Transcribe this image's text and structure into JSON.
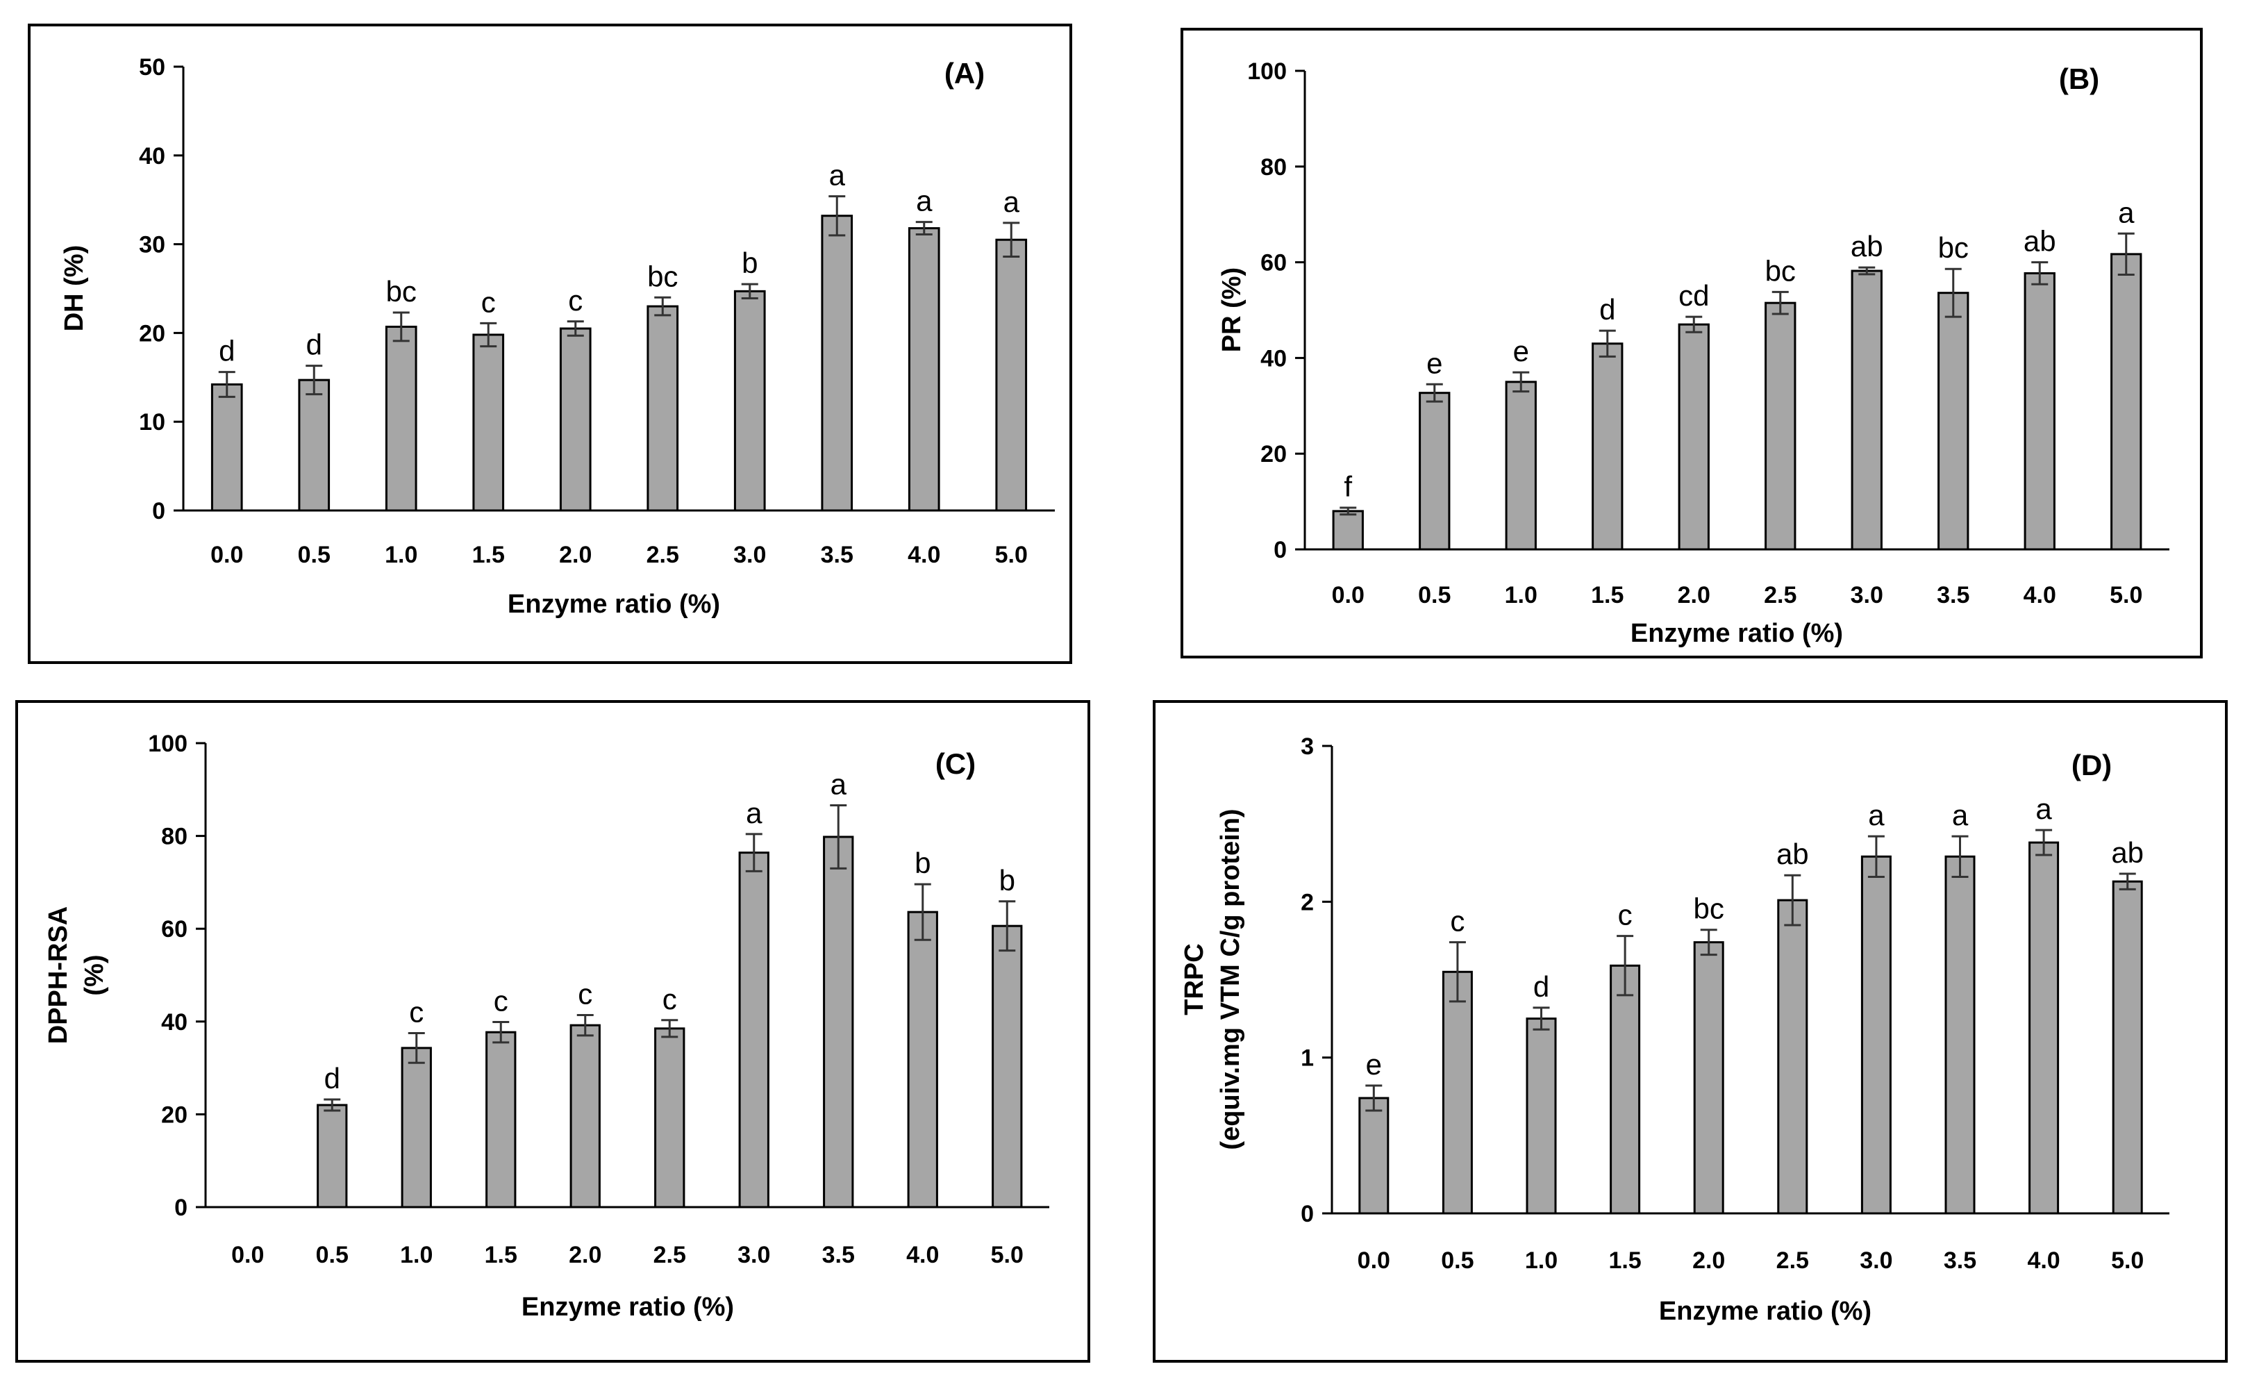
{
  "chart_data": [
    {
      "type": "bar",
      "panel": "(A)",
      "categories": [
        "0.0",
        "0.5",
        "1.0",
        "1.5",
        "2.0",
        "2.5",
        "3.0",
        "3.5",
        "4.0",
        "5.0"
      ],
      "values": [
        14.2,
        14.7,
        20.7,
        19.8,
        20.5,
        23.0,
        24.7,
        33.2,
        31.8,
        30.5
      ],
      "errors": [
        1.4,
        1.6,
        1.6,
        1.3,
        0.8,
        1.0,
        0.8,
        2.2,
        0.7,
        1.9
      ],
      "letters": [
        "d",
        "d",
        "bc",
        "c",
        "c",
        "bc",
        "b",
        "a",
        "a",
        "a"
      ],
      "ylabel": "DH (%)",
      "xlabel": "Enzyme ratio (%)",
      "ylim": [
        0,
        50
      ],
      "yticks": [
        "0",
        "10",
        "20",
        "30",
        "40",
        "50"
      ],
      "grid": false,
      "bar_color": "#a6a6a6"
    },
    {
      "type": "bar",
      "panel": "(B)",
      "categories": [
        "0.0",
        "0.5",
        "1.0",
        "1.5",
        "2.0",
        "2.5",
        "3.0",
        "3.5",
        "4.0",
        "5.0"
      ],
      "values": [
        8.0,
        32.7,
        35.0,
        43.0,
        47.0,
        51.5,
        58.2,
        53.6,
        57.7,
        61.7
      ],
      "errors": [
        0.7,
        1.8,
        2.0,
        2.7,
        1.6,
        2.3,
        0.7,
        5.0,
        2.3,
        4.3
      ],
      "letters": [
        "f",
        "e",
        "e",
        "d",
        "cd",
        "bc",
        "ab",
        "bc",
        "ab",
        "a"
      ],
      "ylabel": "PR (%)",
      "xlabel": "Enzyme ratio (%)",
      "ylim": [
        0,
        100
      ],
      "yticks": [
        "0",
        "20",
        "40",
        "60",
        "80",
        "100"
      ],
      "grid": false,
      "bar_color": "#a6a6a6"
    },
    {
      "type": "bar",
      "panel": "(C)",
      "categories": [
        "0.0",
        "0.5",
        "1.0",
        "1.5",
        "2.0",
        "2.5",
        "3.0",
        "3.5",
        "4.0",
        "5.0"
      ],
      "values": [
        0,
        22.0,
        34.3,
        37.7,
        39.2,
        38.5,
        76.4,
        79.8,
        63.6,
        60.6
      ],
      "errors": [
        0,
        1.2,
        3.2,
        2.2,
        2.2,
        1.8,
        4.0,
        6.8,
        6.0,
        5.3
      ],
      "letters": [
        "",
        "d",
        "c",
        "c",
        "c",
        "c",
        "a",
        "a",
        "b",
        "b"
      ],
      "ylabel": "DPPH-RSA",
      "ylabel2": "(%)",
      "xlabel": "Enzyme ratio (%)",
      "ylim": [
        0,
        100
      ],
      "yticks": [
        "0",
        "20",
        "40",
        "60",
        "80",
        "100"
      ],
      "grid": false,
      "bar_color": "#a6a6a6"
    },
    {
      "type": "bar",
      "panel": "(D)",
      "categories": [
        "0.0",
        "0.5",
        "1.0",
        "1.5",
        "2.0",
        "2.5",
        "3.0",
        "3.5",
        "4.0",
        "5.0"
      ],
      "values": [
        0.74,
        1.55,
        1.25,
        1.59,
        1.74,
        2.01,
        2.29,
        2.29,
        2.38,
        2.13
      ],
      "errors": [
        0.08,
        0.19,
        0.07,
        0.19,
        0.08,
        0.16,
        0.13,
        0.13,
        0.08,
        0.05
      ],
      "letters": [
        "e",
        "c",
        "d",
        "c",
        "bc",
        "ab",
        "a",
        "a",
        "a",
        "ab"
      ],
      "ylabel": "TRPC",
      "ylabel2": "(equiv.mg VTM C/g protein)",
      "xlabel": "Enzyme ratio (%)",
      "ylim": [
        0,
        3
      ],
      "yticks": [
        "0",
        "1",
        "2",
        "3"
      ],
      "grid": false,
      "bar_color": "#a6a6a6"
    }
  ]
}
